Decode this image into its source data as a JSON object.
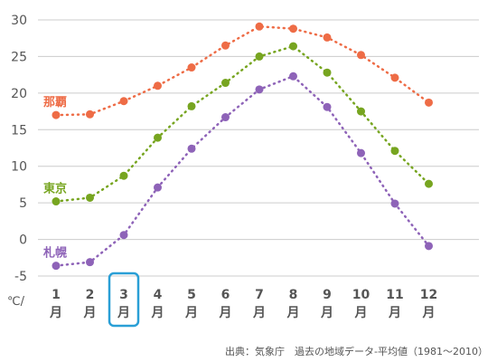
{
  "chart_data": {
    "type": "line",
    "x": [
      1,
      2,
      3,
      4,
      5,
      6,
      7,
      8,
      9,
      10,
      11,
      12
    ],
    "x_tick_labels": [
      "1",
      "2",
      "3",
      "4",
      "5",
      "6",
      "7",
      "8",
      "9",
      "10",
      "11",
      "12"
    ],
    "x_tick_suffix": "月",
    "ylim": [
      -5,
      30
    ],
    "y_ticks": [
      -5,
      0,
      5,
      10,
      15,
      20,
      25,
      30
    ],
    "y_unit_label": "℃/",
    "grid": "horizontal",
    "line_style": "dotted",
    "highlighted_month": 3,
    "highlight_color": "#2a9fd6",
    "series": [
      {
        "name": "那覇",
        "color": "#ee6c46",
        "values": [
          17.0,
          17.1,
          18.9,
          21.0,
          23.5,
          26.5,
          29.1,
          28.8,
          27.6,
          25.2,
          22.1,
          18.7
        ]
      },
      {
        "name": "東京",
        "color": "#77a520",
        "values": [
          5.2,
          5.7,
          8.7,
          13.9,
          18.2,
          21.4,
          25.0,
          26.4,
          22.8,
          17.5,
          12.1,
          7.6
        ]
      },
      {
        "name": "札幌",
        "color": "#8e63b8",
        "values": [
          -3.6,
          -3.1,
          0.6,
          7.1,
          12.4,
          16.7,
          20.5,
          22.3,
          18.1,
          11.8,
          4.9,
          -0.9
        ]
      }
    ]
  },
  "source_note": "出典：気象庁　過去の地域データ-平均値（1981〜2010）"
}
